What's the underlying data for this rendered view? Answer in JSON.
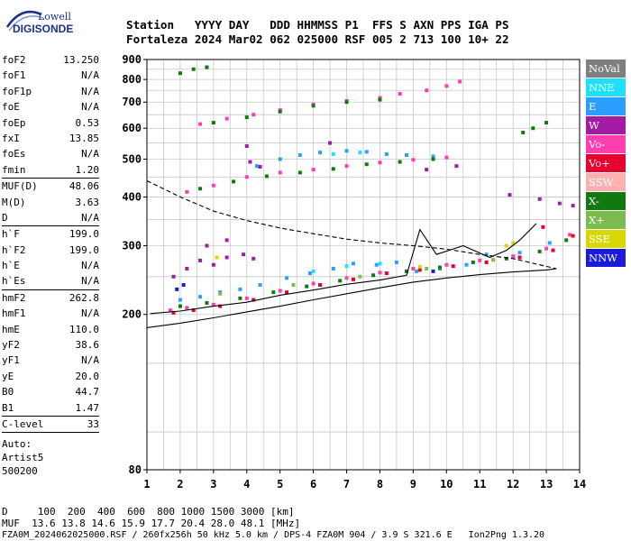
{
  "logo": {
    "top": "Lowell",
    "bottom": "DIGISONDE"
  },
  "header": {
    "labels": "Station   YYYY DAY   DDD HHMMSS P1  FFS S AXN PPS IGA PS",
    "values": "Fortaleza 2024 Mar02 062 025000 RSF 005 2 713 100 10+ 22"
  },
  "params": {
    "group1": [
      {
        "k": "foF2",
        "v": "13.250"
      },
      {
        "k": "foF1",
        "v": "N/A"
      },
      {
        "k": "foF1p",
        "v": "N/A"
      },
      {
        "k": "foE",
        "v": "N/A"
      },
      {
        "k": "foEp",
        "v": "0.53"
      },
      {
        "k": "fxI",
        "v": "13.85"
      },
      {
        "k": "foEs",
        "v": "N/A"
      },
      {
        "k": "fmin",
        "v": "1.20"
      }
    ],
    "group2": [
      {
        "k": "MUF(D)",
        "v": "48.06"
      },
      {
        "k": "M(D)",
        "v": "3.63"
      },
      {
        "k": "D",
        "v": "N/A"
      }
    ],
    "group3": [
      {
        "k": "h`F",
        "v": "199.0"
      },
      {
        "k": "h`F2",
        "v": "199.0"
      },
      {
        "k": "h`E",
        "v": "N/A"
      },
      {
        "k": "h`Es",
        "v": "N/A"
      }
    ],
    "group4": [
      {
        "k": "hmF2",
        "v": "262.8"
      },
      {
        "k": "hmF1",
        "v": "N/A"
      },
      {
        "k": "hmE",
        "v": "110.0"
      },
      {
        "k": "yF2",
        "v": "38.6"
      },
      {
        "k": "yF1",
        "v": "N/A"
      },
      {
        "k": "yE",
        "v": "20.0"
      },
      {
        "k": "B0",
        "v": "44.7"
      },
      {
        "k": "B1",
        "v": "1.47"
      }
    ],
    "group5": [
      {
        "k": "C-level",
        "v": "33"
      }
    ]
  },
  "auto": [
    "Auto:",
    "Artist5",
    "500200"
  ],
  "legend": [
    {
      "label": "NoVal",
      "color": "#7f7f7f"
    },
    {
      "label": "NNE",
      "color": "#1ee0ff"
    },
    {
      "label": "E",
      "color": "#2b9fff"
    },
    {
      "label": "W",
      "color": "#a31aa3"
    },
    {
      "label": "Vo-",
      "color": "#ff3faf"
    },
    {
      "label": "Vo+",
      "color": "#e8002e"
    },
    {
      "label": "SSW",
      "color": "#ffb0b0"
    },
    {
      "label": "X-",
      "color": "#107a10"
    },
    {
      "label": "X+",
      "color": "#7dbb50"
    },
    {
      "label": "SSE",
      "color": "#d8d800"
    },
    {
      "label": "NNW",
      "color": "#1c1cd8"
    }
  ],
  "footer": {
    "line1": "D     100  200  400  600  800 1000 1500 3000 [km]",
    "line2": "MUF  13.6 13.8 14.6 15.9 17.7 20.4 28.0 48.1 [MHz]",
    "line3": "FZA0M_2024062025000.RSF / 260fx256h 50 kHz 5.0 km / DPS-4 FZA0M 904 / 3.9 S 321.6 E   Ion2Png 1.3.20"
  },
  "chart_data": {
    "type": "scatter",
    "title": "",
    "xlabel": "",
    "ylabel": "",
    "xlim": [
      1,
      14
    ],
    "ylim": [
      80,
      900
    ],
    "yscale": "log",
    "xticks": [
      1,
      2,
      3,
      4,
      5,
      6,
      7,
      8,
      9,
      10,
      11,
      12,
      13,
      14
    ],
    "yticks": [
      80,
      200,
      300,
      400,
      500,
      600,
      700,
      800,
      900
    ],
    "grid": true,
    "series": [
      {
        "name": "E",
        "color": "#2b9fff",
        "points": [
          [
            2.0,
            218
          ],
          [
            2.6,
            222
          ],
          [
            3.2,
            228
          ],
          [
            3.8,
            232
          ],
          [
            4.4,
            238
          ],
          [
            5.2,
            248
          ],
          [
            5.9,
            255
          ],
          [
            6.6,
            262
          ],
          [
            7.2,
            270
          ],
          [
            7.9,
            268
          ],
          [
            8.5,
            272
          ],
          [
            9.1,
            258
          ],
          [
            9.8,
            262
          ],
          [
            10.6,
            268
          ],
          [
            11.2,
            285
          ],
          [
            12.2,
            288
          ],
          [
            13.1,
            305
          ],
          [
            4.3,
            480
          ],
          [
            5.0,
            500
          ],
          [
            5.6,
            512
          ],
          [
            6.2,
            520
          ],
          [
            7.0,
            525
          ],
          [
            7.6,
            522
          ],
          [
            8.2,
            515
          ],
          [
            8.8,
            512
          ],
          [
            9.6,
            508
          ]
        ]
      },
      {
        "name": "W",
        "color": "#a31aa3",
        "points": [
          [
            1.8,
            250
          ],
          [
            2.2,
            262
          ],
          [
            2.6,
            275
          ],
          [
            3.0,
            268
          ],
          [
            3.4,
            280
          ],
          [
            3.9,
            285
          ],
          [
            4.2,
            278
          ],
          [
            2.8,
            300
          ],
          [
            3.4,
            310
          ],
          [
            4.1,
            492
          ],
          [
            4.4,
            478
          ],
          [
            4.0,
            540
          ],
          [
            6.5,
            550
          ],
          [
            9.4,
            470
          ],
          [
            10.3,
            480
          ],
          [
            11.9,
            405
          ],
          [
            12.8,
            395
          ],
          [
            13.4,
            385
          ],
          [
            13.8,
            380
          ]
        ]
      },
      {
        "name": "Vo-",
        "color": "#ff3faf",
        "points": [
          [
            1.7,
            205
          ],
          [
            2.2,
            208
          ],
          [
            3.0,
            212
          ],
          [
            4.0,
            220
          ],
          [
            5.0,
            230
          ],
          [
            6.0,
            240
          ],
          [
            7.0,
            248
          ],
          [
            8.0,
            256
          ],
          [
            9.0,
            262
          ],
          [
            10.0,
            268
          ],
          [
            11.0,
            275
          ],
          [
            12.0,
            282
          ],
          [
            13.0,
            295
          ],
          [
            13.7,
            320
          ],
          [
            2.2,
            412
          ],
          [
            3.0,
            428
          ],
          [
            4.0,
            450
          ],
          [
            5.0,
            462
          ],
          [
            6.0,
            470
          ],
          [
            7.0,
            480
          ],
          [
            8.0,
            490
          ],
          [
            9.0,
            498
          ],
          [
            10.0,
            505
          ],
          [
            2.6,
            615
          ],
          [
            3.4,
            635
          ],
          [
            4.2,
            650
          ],
          [
            5.0,
            668
          ],
          [
            6.0,
            690
          ],
          [
            7.0,
            705
          ],
          [
            8.0,
            718
          ],
          [
            8.6,
            735
          ],
          [
            9.4,
            750
          ],
          [
            10.0,
            770
          ],
          [
            10.4,
            790
          ]
        ]
      },
      {
        "name": "Vo+",
        "color": "#e8002e",
        "points": [
          [
            1.8,
            202
          ],
          [
            2.4,
            205
          ],
          [
            3.2,
            210
          ],
          [
            4.2,
            218
          ],
          [
            5.2,
            228
          ],
          [
            6.2,
            238
          ],
          [
            7.2,
            246
          ],
          [
            8.2,
            255
          ],
          [
            9.2,
            260
          ],
          [
            10.2,
            266
          ],
          [
            11.2,
            272
          ],
          [
            12.2,
            280
          ],
          [
            13.2,
            292
          ],
          [
            13.8,
            318
          ],
          [
            12.9,
            335
          ]
        ]
      },
      {
        "name": "X-",
        "color": "#107a10",
        "points": [
          [
            2.0,
            210
          ],
          [
            2.8,
            214
          ],
          [
            3.8,
            220
          ],
          [
            4.8,
            228
          ],
          [
            5.8,
            236
          ],
          [
            6.8,
            244
          ],
          [
            7.8,
            252
          ],
          [
            8.8,
            258
          ],
          [
            9.8,
            264
          ],
          [
            10.8,
            272
          ],
          [
            11.8,
            278
          ],
          [
            12.8,
            290
          ],
          [
            13.6,
            310
          ],
          [
            2.6,
            420
          ],
          [
            3.6,
            438
          ],
          [
            4.6,
            452
          ],
          [
            5.6,
            462
          ],
          [
            6.6,
            472
          ],
          [
            7.6,
            485
          ],
          [
            8.6,
            492
          ],
          [
            9.6,
            500
          ],
          [
            3.0,
            620
          ],
          [
            4.0,
            640
          ],
          [
            5.0,
            662
          ],
          [
            6.0,
            685
          ],
          [
            7.0,
            700
          ],
          [
            8.0,
            710
          ],
          [
            2.0,
            830
          ],
          [
            2.4,
            850
          ],
          [
            2.8,
            860
          ],
          [
            13.0,
            620
          ],
          [
            12.6,
            600
          ],
          [
            12.3,
            585
          ]
        ]
      },
      {
        "name": "NNE",
        "color": "#1ee0ff",
        "points": [
          [
            6.0,
            258
          ],
          [
            7.0,
            266
          ],
          [
            8.0,
            270
          ],
          [
            6.6,
            515
          ],
          [
            7.4,
            520
          ]
        ]
      },
      {
        "name": "X+",
        "color": "#7dbb50",
        "points": [
          [
            3.2,
            226
          ],
          [
            5.4,
            238
          ],
          [
            7.4,
            250
          ],
          [
            9.4,
            262
          ],
          [
            11.4,
            276
          ]
        ]
      },
      {
        "name": "SSE",
        "color": "#d8d800",
        "points": [
          [
            11.8,
            300
          ],
          [
            12.0,
            305
          ],
          [
            3.1,
            280
          ],
          [
            9.2,
            265
          ]
        ]
      },
      {
        "name": "NNW",
        "color": "#1c1cd8",
        "points": [
          [
            1.9,
            232
          ],
          [
            2.1,
            238
          ],
          [
            9.6,
            258
          ]
        ]
      }
    ],
    "curves": [
      {
        "name": "profile-dashed",
        "style": "dashed",
        "points": [
          [
            1.0,
            440
          ],
          [
            2.0,
            400
          ],
          [
            3.0,
            368
          ],
          [
            4.0,
            348
          ],
          [
            5.0,
            333
          ],
          [
            6.0,
            322
          ],
          [
            7.0,
            312
          ],
          [
            8.0,
            305
          ],
          [
            9.0,
            300
          ],
          [
            10.0,
            294
          ],
          [
            11.0,
            285
          ],
          [
            12.0,
            278
          ],
          [
            13.3,
            262
          ]
        ]
      },
      {
        "name": "profile-solid",
        "style": "solid",
        "points": [
          [
            1.0,
            185
          ],
          [
            2.0,
            190
          ],
          [
            3.0,
            196
          ],
          [
            4.0,
            203
          ],
          [
            5.0,
            210
          ],
          [
            6.0,
            218
          ],
          [
            7.0,
            226
          ],
          [
            8.0,
            234
          ],
          [
            9.0,
            242
          ],
          [
            10.0,
            248
          ],
          [
            11.0,
            253
          ],
          [
            12.0,
            257
          ],
          [
            13.0,
            260
          ],
          [
            13.3,
            262
          ]
        ]
      },
      {
        "name": "trace-solid",
        "style": "solid",
        "points": [
          [
            1.1,
            201
          ],
          [
            2.0,
            204
          ],
          [
            3.0,
            210
          ],
          [
            4.0,
            215
          ],
          [
            5.0,
            224
          ],
          [
            6.0,
            231
          ],
          [
            7.0,
            239
          ],
          [
            8.0,
            245
          ],
          [
            8.8,
            252
          ],
          [
            9.2,
            330
          ],
          [
            9.7,
            285
          ],
          [
            10.5,
            300
          ],
          [
            11.3,
            280
          ],
          [
            11.8,
            292
          ],
          [
            12.2,
            310
          ],
          [
            12.7,
            342
          ]
        ]
      }
    ]
  }
}
